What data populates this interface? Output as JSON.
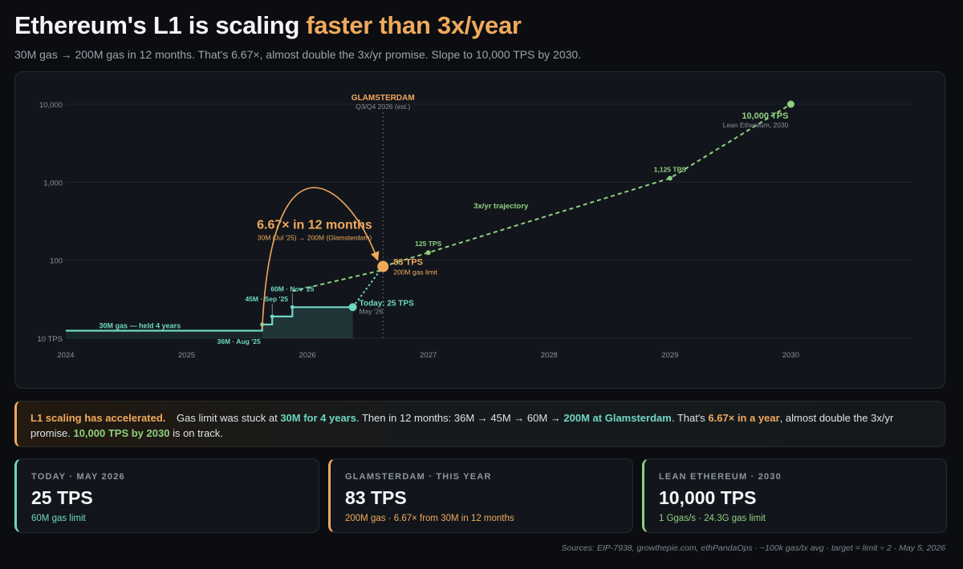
{
  "header": {
    "title_main": "Ethereum's L1 is scaling ",
    "title_accent": "faster than 3x/year",
    "subtitle": "30M gas → 200M gas in 12 months. That's 6.67×, almost double the 3x/yr promise. Slope to 10,000 TPS by 2030."
  },
  "colors": {
    "teal": "#6fd6c4",
    "orange": "#f0a95c",
    "green": "#8fd07f",
    "background": "#0b0d11",
    "panel": "#12161c"
  },
  "chart_data": {
    "type": "line",
    "y_scale": "log",
    "ylim": [
      10,
      10000
    ],
    "xlim": [
      2024,
      2031
    ],
    "y_ticks": [
      {
        "value": 10,
        "label": "10 TPS"
      },
      {
        "value": 100,
        "label": "100"
      },
      {
        "value": 1000,
        "label": "1,000"
      },
      {
        "value": 10000,
        "label": "10,000"
      }
    ],
    "x_ticks": [
      "2024",
      "2025",
      "2026",
      "2027",
      "2028",
      "2029",
      "2030"
    ],
    "grid": "horizontal",
    "series": [
      {
        "key": "history",
        "style": "step",
        "color": "#6fd6c4",
        "points": [
          {
            "x": "2024",
            "y": 12.5
          },
          {
            "x": "Aug '25",
            "y": 12.5
          },
          {
            "x": "Aug '25",
            "y": 15
          },
          {
            "x": "Sep '25",
            "y": 15
          },
          {
            "x": "Sep '25",
            "y": 19
          },
          {
            "x": "Nov '25",
            "y": 19
          },
          {
            "x": "Nov '25",
            "y": 25
          },
          {
            "x": "May '26",
            "y": 25
          }
        ]
      },
      {
        "key": "glamsterdam_path",
        "style": "dotted",
        "color": "#6fd6c4",
        "points": [
          {
            "x": "May '26",
            "y": 25
          },
          {
            "x": "Q3/Q4 2026",
            "y": 83
          }
        ]
      },
      {
        "key": "prior_trend",
        "style": "dashed",
        "color": "#8fd07f",
        "points": [
          {
            "x": "Nov '25",
            "y": 40
          },
          {
            "x": "Q3/Q4 2026",
            "y": 75
          }
        ]
      },
      {
        "name": "3x/yr trajectory",
        "key": "trajectory",
        "style": "dashed",
        "color": "#8fd07f",
        "points": [
          {
            "x": "Q3/Q4 2026",
            "y": 83
          },
          {
            "x": "2027",
            "y": 125
          },
          {
            "x": "2029",
            "y": 1125
          },
          {
            "x": "2030",
            "y": 10000
          }
        ]
      }
    ],
    "annotations": {
      "glamsterdam": {
        "title": "GLAMSTERDAM",
        "subtitle": "Q3/Q4 2026 (est.)"
      },
      "growth": {
        "title": "6.67× in 12 months",
        "subtitle": "30M (Jul '25) → 200M (Glamsterdam)"
      },
      "trajectory_label": "3x/yr trajectory",
      "held_label": "30M gas — held 4 years",
      "step_aug": "36M · Aug '25",
      "step_sep": "45M · Sep '25",
      "step_nov": "60M · Nov '25",
      "today": {
        "title": "Today: 25 TPS",
        "subtitle": "May '26"
      },
      "glam_point": {
        "title": "83 TPS",
        "subtitle": "200M gas limit"
      },
      "p125": "125 TPS",
      "p1125": "1,125 TPS",
      "lean": {
        "title": "10,000 TPS",
        "subtitle": "Lean Ethereum, 2030"
      }
    }
  },
  "callout": {
    "lead": "L1 scaling has accelerated.",
    "t1": "Gas limit was stuck at ",
    "h1": "30M for 4 years",
    "t2": ". Then in 12 months: 36M → 45M → 60M → ",
    "h2": "200M at Glamsterdam",
    "t3": ". That's ",
    "h3": "6.67× in a year",
    "t4": ", almost double the 3x/yr promise. ",
    "h4": "10,000 TPS by 2030",
    "t5": " is on track."
  },
  "stats": [
    {
      "label": "TODAY · MAY 2026",
      "value": "25 TPS",
      "sub": "60M gas limit"
    },
    {
      "label": "GLAMSTERDAM · THIS YEAR",
      "value": "83 TPS",
      "sub": "200M gas · 6.67× from 30M in 12 months"
    },
    {
      "label": "LEAN ETHEREUM · 2030",
      "value": "10,000 TPS",
      "sub": "1 Ggas/s · 24.3G gas limit"
    }
  ],
  "sources": "Sources: EIP-7938, growthepie.com, ethPandaOps · ~100k gas/tx avg · target = limit ÷ 2 · May 5, 2026"
}
